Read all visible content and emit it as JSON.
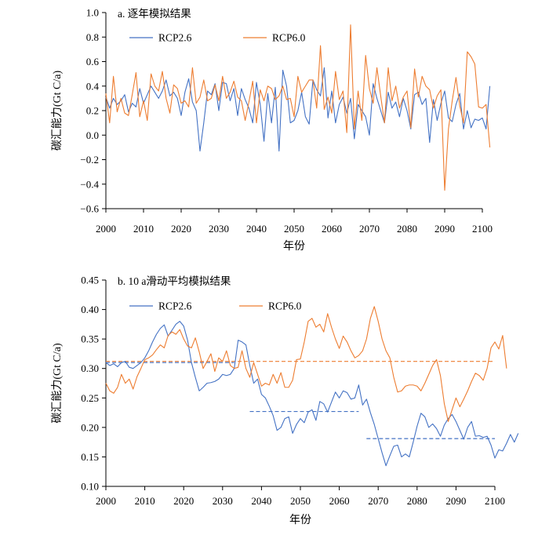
{
  "chart_data": [
    {
      "type": "line",
      "title": "a. 逐年模拟结果",
      "xlabel": "年份",
      "ylabel": "碳汇能力(Gt C/a)",
      "xlim": [
        2000,
        2100
      ],
      "ylim": [
        -0.6,
        1.0
      ],
      "xticks": [
        "2000",
        "2010",
        "2020",
        "2030",
        "2040",
        "2050",
        "2060",
        "2070",
        "2080",
        "2090",
        "2100"
      ],
      "yticks": [
        "−0.6",
        "−0.4",
        "−0.2",
        "0.0",
        "0.2",
        "0.4",
        "0.6",
        "0.8",
        "1.0"
      ],
      "legend_position": "top-left",
      "grid": false,
      "colors": {
        "RCP2.6": "#4472c4",
        "RCP6.0": "#ed7d31"
      },
      "x_start": 2000,
      "series": [
        {
          "name": "RCP2.6",
          "values": [
            0.31,
            0.22,
            0.3,
            0.25,
            0.28,
            0.33,
            0.19,
            0.26,
            0.23,
            0.38,
            0.26,
            0.33,
            0.4,
            0.35,
            0.3,
            0.36,
            0.45,
            0.32,
            0.35,
            0.3,
            0.16,
            0.35,
            0.46,
            0.27,
            0.2,
            -0.13,
            0.1,
            0.36,
            0.33,
            0.42,
            0.2,
            0.43,
            0.42,
            0.28,
            0.38,
            0.16,
            0.38,
            0.29,
            0.22,
            0.1,
            0.43,
            0.25,
            -0.05,
            0.34,
            0.1,
            0.39,
            -0.13,
            0.53,
            0.4,
            0.1,
            0.12,
            0.2,
            0.35,
            0.15,
            0.09,
            0.45,
            0.37,
            0.32,
            0.55,
            0.14,
            0.36,
            0.1,
            0.25,
            0.31,
            0.18,
            0.3,
            -0.03,
            0.25,
            0.2,
            0.15,
            0.0,
            0.42,
            0.3,
            0.2,
            0.1,
            0.35,
            0.22,
            0.27,
            0.15,
            0.3,
            0.2,
            0.05,
            0.33,
            0.35,
            0.25,
            0.3,
            -0.06,
            0.29,
            0.12,
            0.26,
            0.36,
            0.14,
            0.11,
            0.25,
            0.34,
            0.05,
            0.2,
            0.06,
            0.13,
            0.12,
            0.14,
            0.05,
            0.4
          ]
        },
        {
          "name": "RCP6.0",
          "values": [
            0.34,
            0.1,
            0.48,
            0.19,
            0.3,
            0.18,
            0.16,
            0.33,
            0.51,
            0.15,
            0.28,
            0.12,
            0.5,
            0.4,
            0.36,
            0.52,
            0.3,
            0.18,
            0.41,
            0.38,
            0.26,
            0.28,
            0.23,
            0.55,
            0.26,
            0.31,
            0.45,
            0.28,
            0.3,
            0.41,
            0.28,
            0.48,
            0.3,
            0.35,
            0.44,
            0.31,
            0.28,
            0.12,
            0.27,
            0.44,
            0.1,
            0.37,
            0.28,
            0.4,
            0.38,
            0.29,
            0.32,
            0.4,
            0.29,
            0.3,
            0.15,
            0.48,
            0.35,
            0.4,
            0.45,
            0.45,
            0.22,
            0.73,
            0.21,
            0.31,
            0.18,
            0.52,
            0.29,
            0.36,
            0.02,
            0.9,
            0.05,
            0.36,
            0.12,
            0.65,
            0.38,
            0.26,
            0.55,
            0.32,
            0.1,
            0.55,
            0.28,
            0.4,
            0.22,
            0.31,
            0.36,
            0.06,
            0.54,
            0.31,
            0.48,
            0.4,
            0.37,
            0.22,
            0.32,
            0.37,
            -0.45,
            0.05,
            0.28,
            0.47,
            0.24,
            0.1,
            0.68,
            0.64,
            0.58,
            0.23,
            0.22,
            0.25,
            -0.1
          ]
        }
      ]
    },
    {
      "type": "line",
      "title": "b. 10 a滑动平均模拟结果",
      "xlabel": "年份",
      "ylabel": "碳汇能力(Gt C/a)",
      "xlim": [
        2000,
        2100
      ],
      "ylim": [
        0.1,
        0.45
      ],
      "xticks": [
        "2000",
        "2010",
        "2020",
        "2030",
        "2040",
        "2050",
        "2060",
        "2070",
        "2080",
        "2090",
        "2100"
      ],
      "yticks": [
        "0.10",
        "0.15",
        "0.20",
        "0.25",
        "0.30",
        "0.35",
        "0.40",
        "0.45"
      ],
      "legend_position": "top-left",
      "grid": false,
      "colors": {
        "RCP2.6": "#4472c4",
        "RCP6.0": "#ed7d31"
      },
      "x_start": 2000,
      "series": [
        {
          "name": "RCP2.6",
          "values": [
            0.31,
            0.305,
            0.308,
            0.303,
            0.31,
            0.312,
            0.302,
            0.3,
            0.305,
            0.31,
            0.318,
            0.33,
            0.345,
            0.358,
            0.368,
            0.374,
            0.355,
            0.365,
            0.375,
            0.38,
            0.372,
            0.348,
            0.31,
            0.285,
            0.262,
            0.268,
            0.275,
            0.276,
            0.278,
            0.282,
            0.29,
            0.288,
            0.29,
            0.3,
            0.348,
            0.345,
            0.34,
            0.305,
            0.275,
            0.282,
            0.256,
            0.25,
            0.236,
            0.22,
            0.195,
            0.2,
            0.215,
            0.218,
            0.19,
            0.205,
            0.215,
            0.208,
            0.226,
            0.23,
            0.212,
            0.244,
            0.24,
            0.226,
            0.243,
            0.26,
            0.25,
            0.262,
            0.259,
            0.248,
            0.25,
            0.272,
            0.238,
            0.248,
            0.225,
            0.205,
            0.181,
            0.157,
            0.135,
            0.152,
            0.168,
            0.17,
            0.15,
            0.155,
            0.15,
            0.175,
            0.202,
            0.224,
            0.218,
            0.2,
            0.206,
            0.198,
            0.185,
            0.204,
            0.215,
            0.222,
            0.21,
            0.195,
            0.18,
            0.2,
            0.21,
            0.185,
            0.186,
            0.183,
            0.185,
            0.17,
            0.148,
            0.162,
            0.16,
            0.173,
            0.188,
            0.175,
            0.19
          ]
        },
        {
          "name": "RCP6.0",
          "values": [
            0.275,
            0.262,
            0.258,
            0.268,
            0.29,
            0.275,
            0.282,
            0.265,
            0.286,
            0.3,
            0.315,
            0.318,
            0.323,
            0.332,
            0.34,
            0.335,
            0.356,
            0.362,
            0.358,
            0.366,
            0.35,
            0.338,
            0.335,
            0.352,
            0.328,
            0.3,
            0.312,
            0.325,
            0.295,
            0.318,
            0.312,
            0.33,
            0.305,
            0.3,
            0.302,
            0.33,
            0.3,
            0.285,
            0.31,
            0.29,
            0.27,
            0.275,
            0.272,
            0.29,
            0.275,
            0.293,
            0.268,
            0.268,
            0.28,
            0.315,
            0.316,
            0.345,
            0.38,
            0.385,
            0.37,
            0.375,
            0.362,
            0.393,
            0.37,
            0.35,
            0.334,
            0.355,
            0.345,
            0.33,
            0.318,
            0.322,
            0.33,
            0.35,
            0.385,
            0.405,
            0.38,
            0.35,
            0.33,
            0.318,
            0.285,
            0.26,
            0.262,
            0.27,
            0.272,
            0.272,
            0.27,
            0.262,
            0.275,
            0.29,
            0.305,
            0.315,
            0.288,
            0.24,
            0.21,
            0.23,
            0.25,
            0.235,
            0.248,
            0.262,
            0.278,
            0.292,
            0.288,
            0.28,
            0.3,
            0.335,
            0.345,
            0.333,
            0.356,
            0.3
          ]
        }
      ],
      "reference_lines": [
        {
          "series": "RCP2.6",
          "x": [
            2000,
            2033
          ],
          "y": 0.31
        },
        {
          "series": "RCP2.6",
          "x": [
            2037,
            2065
          ],
          "y": 0.227
        },
        {
          "series": "RCP2.6",
          "x": [
            2067,
            2100
          ],
          "y": 0.181
        },
        {
          "series": "RCP6.0",
          "x": [
            2000,
            2100
          ],
          "y": 0.312
        }
      ]
    }
  ]
}
